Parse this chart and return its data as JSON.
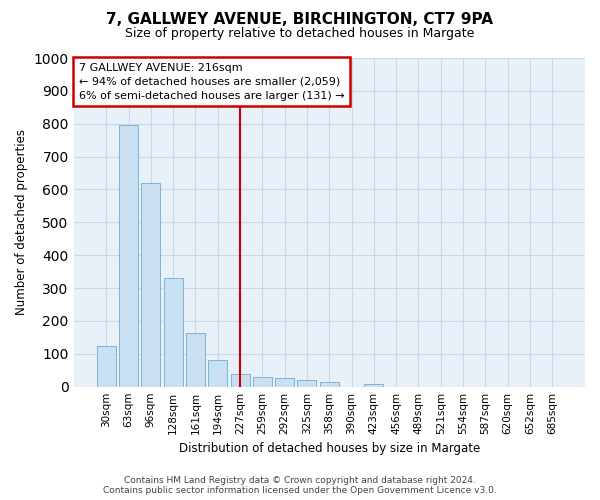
{
  "title1": "7, GALLWEY AVENUE, BIRCHINGTON, CT7 9PA",
  "title2": "Size of property relative to detached houses in Margate",
  "xlabel": "Distribution of detached houses by size in Margate",
  "ylabel": "Number of detached properties",
  "categories": [
    "30sqm",
    "63sqm",
    "96sqm",
    "128sqm",
    "161sqm",
    "194sqm",
    "227sqm",
    "259sqm",
    "292sqm",
    "325sqm",
    "358sqm",
    "390sqm",
    "423sqm",
    "456sqm",
    "489sqm",
    "521sqm",
    "554sqm",
    "587sqm",
    "620sqm",
    "652sqm",
    "685sqm"
  ],
  "values": [
    125,
    795,
    620,
    330,
    163,
    80,
    40,
    28,
    25,
    20,
    13,
    0,
    8,
    0,
    0,
    0,
    0,
    0,
    0,
    0,
    0
  ],
  "bar_color": "#c9dff2",
  "bar_edge_color": "#7fb3d9",
  "red_line_index": 6,
  "annotation_title": "7 GALLWEY AVENUE: 216sqm",
  "annotation_line1": "← 94% of detached houses are smaller (2,059)",
  "annotation_line2": "6% of semi-detached houses are larger (131) →",
  "annotation_box_color": "#ffffff",
  "annotation_box_edge": "#cc0000",
  "red_line_color": "#cc0000",
  "ylim": [
    0,
    1000
  ],
  "yticks": [
    0,
    100,
    200,
    300,
    400,
    500,
    600,
    700,
    800,
    900,
    1000
  ],
  "grid_color": "#c8d8e8",
  "plot_bg_color": "#e8f0f8",
  "fig_bg_color": "#ffffff",
  "footer1": "Contains HM Land Registry data © Crown copyright and database right 2024.",
  "footer2": "Contains public sector information licensed under the Open Government Licence v3.0.",
  "title1_fontsize": 11,
  "title2_fontsize": 9
}
